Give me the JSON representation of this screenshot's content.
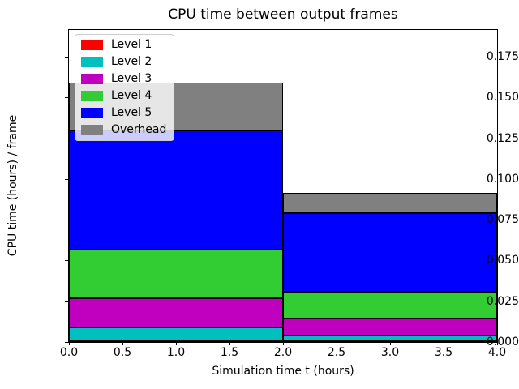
{
  "chart_data": {
    "type": "bar",
    "stacked": true,
    "title": "CPU time between output frames",
    "xlabel": "Simulation time t (hours)",
    "ylabel": "CPU time (hours) / frame",
    "xlim": [
      0,
      4
    ],
    "ylim": [
      0,
      0.1914
    ],
    "xticks": [
      0.0,
      0.5,
      1.0,
      1.5,
      2.0,
      2.5,
      3.0,
      3.5,
      4.0
    ],
    "yticks": [
      0.0,
      0.025,
      0.05,
      0.075,
      0.1,
      0.125,
      0.15,
      0.175
    ],
    "grid": false,
    "bar_edge_color": "#000000",
    "bars": [
      {
        "x_start": 0,
        "x_end": 2
      },
      {
        "x_start": 2,
        "x_end": 4
      }
    ],
    "series": [
      {
        "name": "Level 1",
        "color": "#ff0000",
        "values": [
          0.001,
          0.0005
        ]
      },
      {
        "name": "Level 2",
        "color": "#00bfbf",
        "values": [
          0.008,
          0.0035
        ]
      },
      {
        "name": "Level 3",
        "color": "#bf00bf",
        "values": [
          0.018,
          0.0105
        ]
      },
      {
        "name": "Level 4",
        "color": "#32cd32",
        "values": [
          0.0295,
          0.0165
        ]
      },
      {
        "name": "Level 5",
        "color": "#0000ff",
        "values": [
          0.0735,
          0.048
        ]
      },
      {
        "name": "Overhead",
        "color": "#808080",
        "values": [
          0.029,
          0.0125
        ]
      }
    ],
    "stack_totals": [
      0.159,
      0.0915
    ],
    "legend": {
      "position": "upper left",
      "entries": [
        "Level 1",
        "Level 2",
        "Level 3",
        "Level 4",
        "Level 5",
        "Overhead"
      ]
    }
  }
}
